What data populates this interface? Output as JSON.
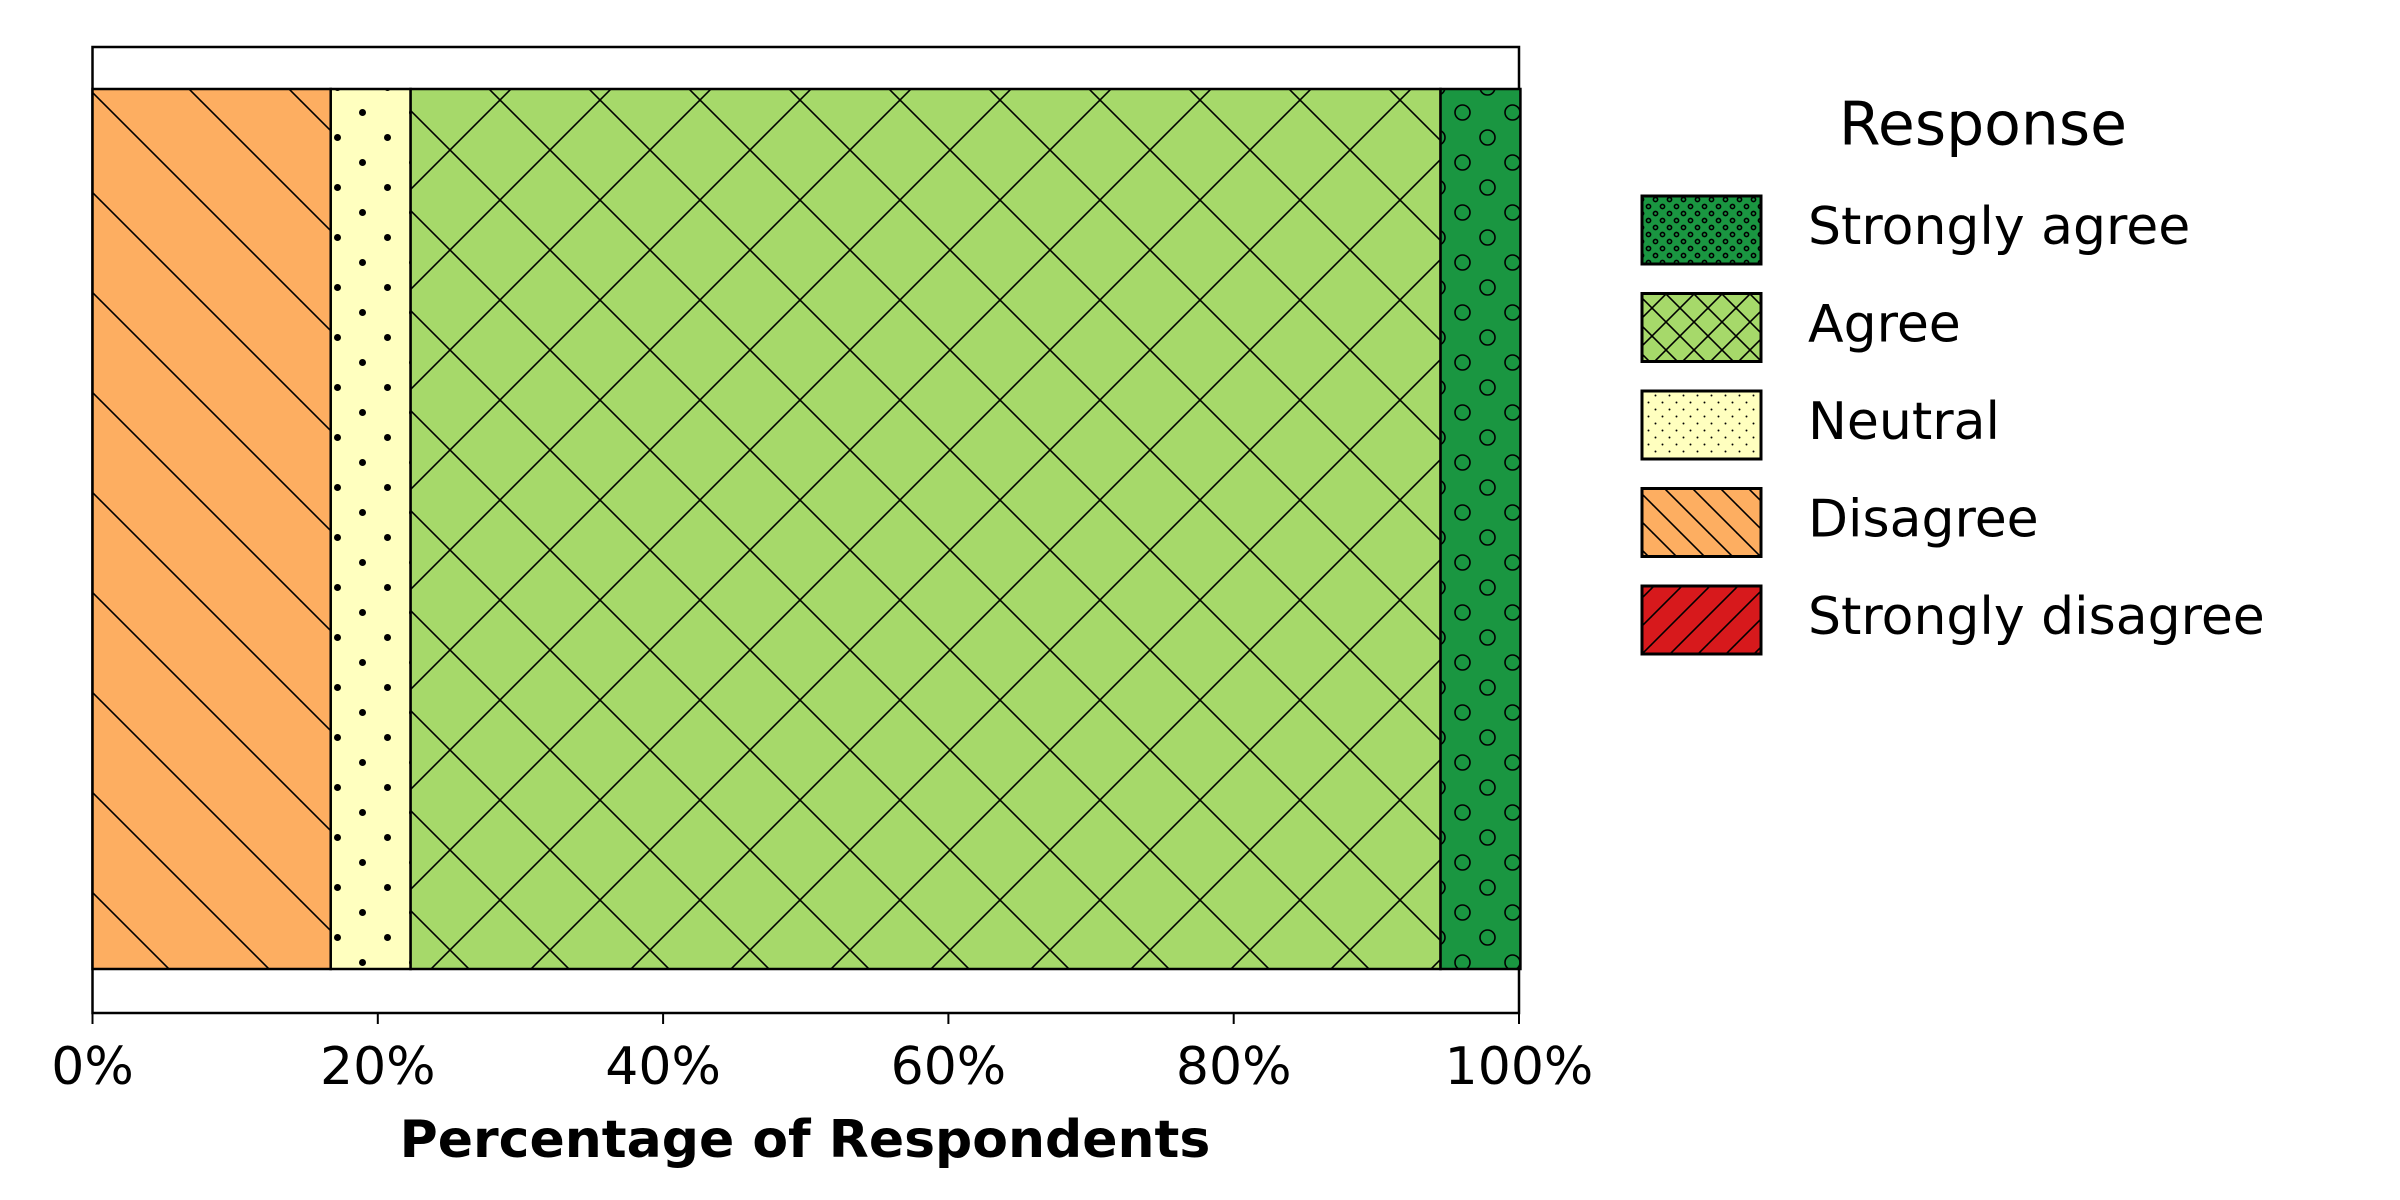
{
  "chart_data": {
    "type": "stacked-bar-horizontal",
    "xlabel": "Percentage of Respondents",
    "categories": [
      null
    ],
    "series": [
      {
        "name": "Strongly disagree",
        "color": "#d7191c",
        "hatch": "/",
        "values": [
          0
        ]
      },
      {
        "name": "Disagree",
        "color": "#fdae61",
        "hatch": "\\",
        "values": [
          16.7
        ]
      },
      {
        "name": "Neutral",
        "color": "#ffffbf",
        "hatch": ".",
        "values": [
          5.6
        ]
      },
      {
        "name": "Agree",
        "color": "#a6d96a",
        "hatch": "x",
        "values": [
          72.2
        ]
      },
      {
        "name": "Strongly agree",
        "color": "#1a9641",
        "hatch": "o",
        "values": [
          5.6
        ]
      }
    ],
    "xlim": [
      0,
      100
    ],
    "xticks": [
      {
        "value": 0,
        "label": "0%"
      },
      {
        "value": 20,
        "label": "20%"
      },
      {
        "value": 40,
        "label": "40%"
      },
      {
        "value": 60,
        "label": "60%"
      },
      {
        "value": 80,
        "label": "80%"
      },
      {
        "value": 100,
        "label": "100%"
      }
    ],
    "legend": {
      "title": "Response",
      "position": "outside-right",
      "reversed": true
    }
  }
}
